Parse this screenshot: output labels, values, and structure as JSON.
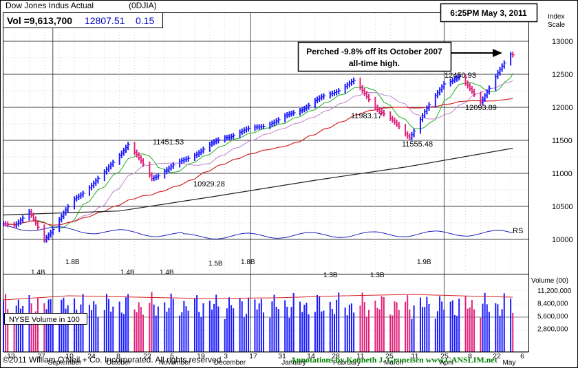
{
  "header": {
    "instrument": "Dow Jones Indus Actual",
    "symbol": "(0DJIA)",
    "volume_text": "Vol =9,613,700",
    "last_price": "12807.51",
    "change": "0.15"
  },
  "timestamp": "6:25PM May 3, 2011",
  "index_scale_label": [
    "Index",
    "Scale"
  ],
  "annotation": {
    "line1": "Perched -9.8% off its October 2007",
    "line2": "all-time high."
  },
  "nyse_volume_label": "NYSE Volume in 100",
  "rs_label": "RS",
  "volume_axis_title": "Volume (00)",
  "footer": {
    "copyright": "©2011 William O'Neil + Co. Incorporated. All rights reserved.",
    "credit": "Annotations by Kenneth J. Gruneisen  www.CANSLIM.net"
  },
  "colors": {
    "up_bar": "#1a1aff",
    "down_bar": "#e0207a",
    "ma50": "#d42020",
    "ma200": "#202020",
    "ma10": "#20b020",
    "ma21": "#c080d0",
    "rs": "#2020c0",
    "credit_green": "#008000"
  },
  "chart_data": [
    {
      "type": "ohlc",
      "title": "Dow Jones Indus Actual",
      "y_ticks": [
        10000,
        10500,
        11000,
        11500,
        12000,
        12500,
        13000
      ],
      "ylim": [
        9600,
        13300
      ],
      "x_day_ticks": [
        "13",
        "27",
        "10",
        "24",
        "8",
        "22",
        "5",
        "19",
        "3",
        "17",
        "31",
        "14",
        "28",
        "11",
        "25",
        "11",
        "25",
        "8",
        "22",
        "6"
      ],
      "month_labels": [
        "September",
        "October",
        "November",
        "December",
        "January",
        "February",
        "March",
        "April",
        "May"
      ],
      "series_points": [
        {
          "date": "2010-09-13",
          "close": 10230
        },
        {
          "date": "2010-09-20",
          "close": 10400
        },
        {
          "date": "2010-09-27",
          "close": 10000
        },
        {
          "date": "2010-10-04",
          "close": 10300
        },
        {
          "date": "2010-10-11",
          "close": 10600
        },
        {
          "date": "2010-10-25",
          "close": 11000
        },
        {
          "date": "2010-11-05",
          "close": 11451.53
        },
        {
          "date": "2010-11-16",
          "close": 10929.28
        },
        {
          "date": "2010-12-01",
          "close": 11200
        },
        {
          "date": "2010-12-20",
          "close": 11550
        },
        {
          "date": "2011-01-14",
          "close": 11800
        },
        {
          "date": "2011-02-18",
          "close": 12391
        },
        {
          "date": "2011-03-01",
          "close": 11983.17
        },
        {
          "date": "2011-03-16",
          "close": 11555.48
        },
        {
          "date": "2011-04-01",
          "close": 12376
        },
        {
          "date": "2011-04-08",
          "close": 12450.93
        },
        {
          "date": "2011-04-18",
          "close": 12093.89
        },
        {
          "date": "2011-05-02",
          "close": 12807.51
        }
      ],
      "price_labels": [
        "11451.53",
        "10929.28",
        "11983.17",
        "11555.48",
        "12450.93",
        "12093.89"
      ]
    },
    {
      "type": "bar",
      "title": "Volume (00)",
      "y_ticks": [
        "11,200,000",
        "8,400,000",
        "5,600,000",
        "2,800,000"
      ],
      "ylim": [
        0,
        11200000
      ],
      "peak_labels": [
        "1.4B",
        "1.8B",
        "1.4B",
        "1.4B",
        "1.5B",
        "1.8B",
        "1.3B",
        "1.3B",
        "1.9B"
      ]
    }
  ]
}
